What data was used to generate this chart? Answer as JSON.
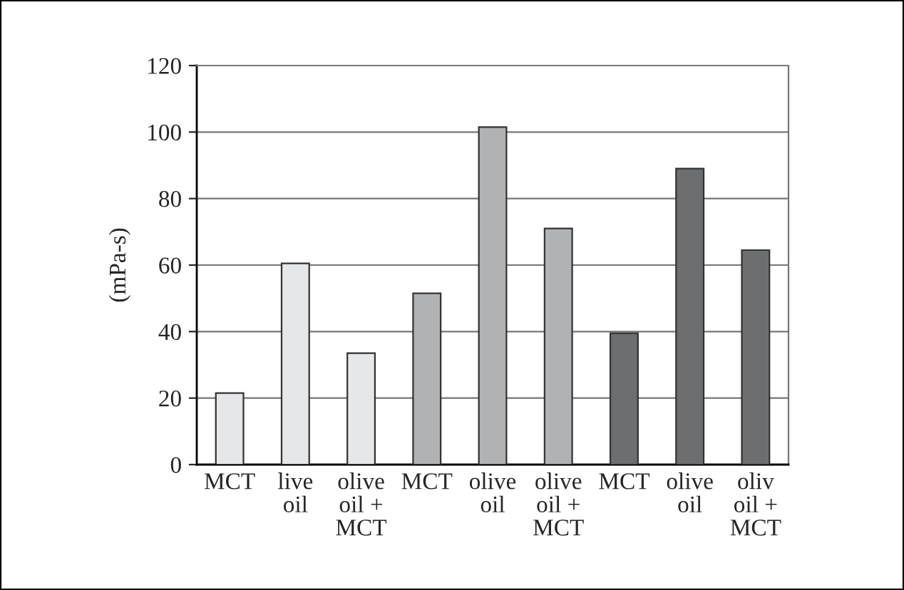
{
  "chart_data": {
    "type": "bar",
    "ylabel": "(mPa-s)",
    "categories": [
      "MCT",
      "live\noil",
      "olive\noil +\nMCT",
      "MCT",
      "olive\noil",
      "olive\noil +\nMCT",
      "MCT",
      "olive\noil",
      "oliv\noil +\nMCT"
    ],
    "values": [
      21.5,
      60.5,
      33.5,
      51.5,
      101.5,
      71,
      39.5,
      89,
      64.5
    ],
    "colors": [
      "#e6e7e8",
      "#e6e7e8",
      "#e6e7e8",
      "#b1b2b4",
      "#b1b2b4",
      "#b1b2b4",
      "#6d6e70",
      "#6d6e70",
      "#6d6e70"
    ],
    "ylim": [
      0,
      120
    ],
    "yticks": [
      0,
      20,
      40,
      60,
      80,
      100,
      120
    ],
    "grid": "y",
    "legend": false
  }
}
